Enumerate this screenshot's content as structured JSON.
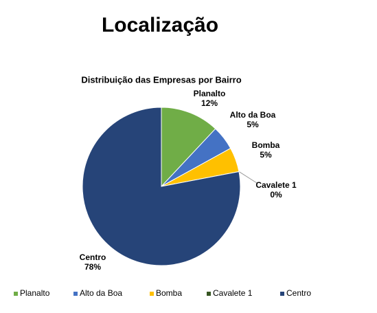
{
  "title": "Localização",
  "chart_data": {
    "type": "pie",
    "title": "Distribuição das Empresas por Bairro",
    "categories": [
      "Planalto",
      "Alto da Boa",
      "Bomba",
      "Cavalete 1",
      "Centro"
    ],
    "values": [
      12,
      5,
      5,
      0,
      78
    ],
    "value_labels": [
      "12%",
      "5%",
      "5%",
      "0%",
      "78%"
    ],
    "colors": [
      "#70ad47",
      "#4472c4",
      "#ffc000",
      "#375623",
      "#264478"
    ],
    "legend": "bottom"
  }
}
